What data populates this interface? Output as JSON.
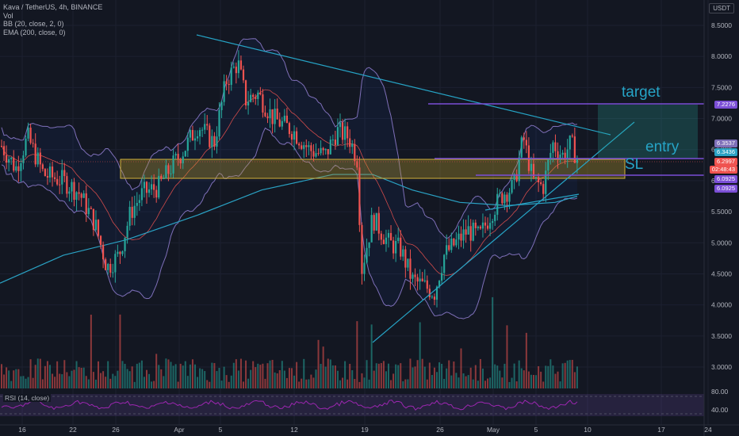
{
  "header": {
    "symbol_line": "Kava / TetherUS, 4h, BINANCE",
    "vol_label": "Vol",
    "bb_label": "BB (20, close, 2, 0)",
    "ema_label": "EMA (200, close, 0)"
  },
  "currency_badge": "USDT",
  "rsi_label": "RSI (14, close)",
  "annotations": {
    "target": "target",
    "entry": "entry",
    "sl": "SL"
  },
  "price_tags": {
    "target": "7.2276",
    "bb_upper": "6.3537",
    "ema": "6.3436",
    "current": "6.2997",
    "countdown": "02:48:43",
    "sl": "6.0925",
    "sl2": "6.0925"
  },
  "colors": {
    "background": "#131722",
    "up": "#26a69a",
    "down": "#ef5350",
    "bb": "#7e6fb8",
    "ema": "#2aa2c4",
    "purple_line": "#7b4fd6",
    "zone": "#b89b2a",
    "teal": "#26a4c6"
  },
  "chart_data": {
    "type": "candlestick",
    "y_axis_ticks": [
      "8.5000",
      "8.0000",
      "7.5000",
      "7.0000",
      "6.5000",
      "6.0000",
      "5.5000",
      "5.0000",
      "4.5000",
      "4.0000",
      "3.5000",
      "3.0000"
    ],
    "rsi_axis_ticks": [
      "80.00",
      "40.00"
    ],
    "x_axis_ticks": [
      "16",
      "22",
      "26",
      "Apr",
      "5",
      "12",
      "19",
      "26",
      "May",
      "5",
      "10",
      "17",
      "24"
    ],
    "ylim": [
      2.7,
      8.7
    ],
    "levels": {
      "target": 7.2276,
      "entry": 6.3436,
      "sl": 6.0925,
      "current": 6.2997
    },
    "zone": [
      6.0,
      6.3
    ]
  }
}
